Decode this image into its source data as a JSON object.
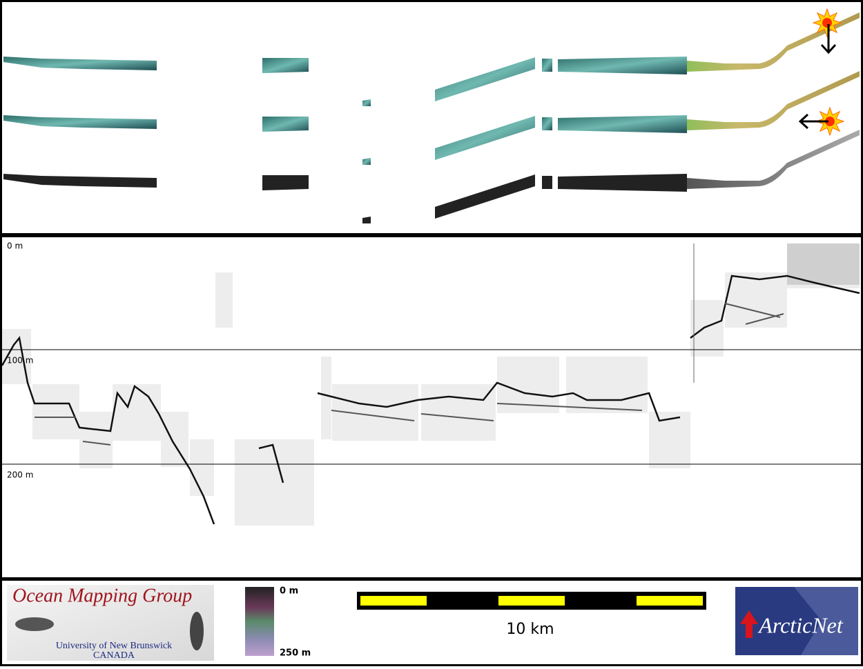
{
  "profile": {
    "depth_labels": [
      "0 m",
      "100 m",
      "200 m"
    ]
  },
  "logo": {
    "title": "Ocean Mapping Group",
    "university": "University of New Brunswick",
    "country": "CANADA"
  },
  "colorbar": {
    "top": "0 m",
    "bottom": "250 m"
  },
  "scale_bar": {
    "label": "10 km"
  },
  "partner_logo": {
    "label": "ArcticNet"
  }
}
